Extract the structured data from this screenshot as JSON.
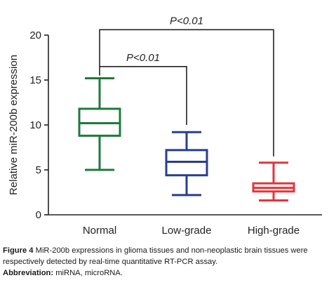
{
  "chart_data": {
    "type": "box",
    "ylabel": "Relative miR-200b expression",
    "ylim": [
      0,
      20
    ],
    "yticks": [
      0,
      5,
      10,
      15,
      20
    ],
    "categories": [
      "Normal",
      "Low-grade",
      "High-grade"
    ],
    "boxes": [
      {
        "category": "Normal",
        "color": "#1d7a3c",
        "min": 5.0,
        "q1": 8.8,
        "median": 10.2,
        "q3": 11.8,
        "max": 15.2
      },
      {
        "category": "Low-grade",
        "color": "#2a3d8f",
        "min": 2.2,
        "q1": 4.4,
        "median": 5.9,
        "q3": 7.2,
        "max": 9.2
      },
      {
        "category": "High-grade",
        "color": "#e0363b",
        "min": 1.6,
        "q1": 2.6,
        "median": 3.0,
        "q3": 3.5,
        "max": 5.8
      }
    ],
    "annotations": [
      {
        "text": "P<0.01",
        "from": "Normal",
        "to": "Low-grade",
        "from_value": 16.5,
        "to_value": 10.0
      },
      {
        "text": "P<0.01",
        "from": "Normal",
        "to": "High-grade",
        "from_value": 20.6,
        "to_value": 6.5
      }
    ]
  },
  "caption": {
    "figure_label": "Figure 4",
    "figure_text": " MiR-200b expressions in glioma tissues and non-neoplastic brain tissues were respectively detected by real-time quantitative RT-PCR assay.",
    "abbrev_label": "Abbreviation:",
    "abbrev_text": " miRNA, microRNA."
  }
}
